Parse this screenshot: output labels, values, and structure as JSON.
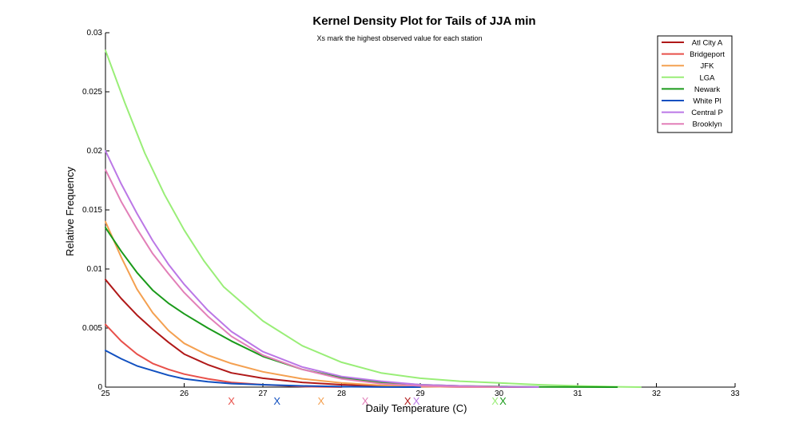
{
  "chart_data": {
    "type": "line",
    "title": "Kernel Density Plot for Tails of JJA min",
    "subtitle": "Xs mark the highest observed value for each station",
    "xlabel": "Daily Temperature (C)",
    "ylabel": "Relative Frequency",
    "xlim": [
      25,
      33
    ],
    "ylim": [
      0,
      0.03
    ],
    "xticks": [
      "25",
      "26",
      "27",
      "28",
      "29",
      "30",
      "31",
      "32",
      "33"
    ],
    "yticks": [
      "0",
      "0.005",
      "0.01",
      "0.015",
      "0.02",
      "0.025",
      "0.03"
    ],
    "grid": false,
    "legend_position": "top-right",
    "series": [
      {
        "name": "Atl City A",
        "color": "#b01818",
        "x": [
          25,
          25.2,
          25.4,
          25.6,
          25.8,
          26,
          26.3,
          26.6,
          27,
          27.5,
          28,
          28.5,
          29,
          29.5,
          30,
          30.5
        ],
        "y": [
          0.0091,
          0.0075,
          0.0061,
          0.0049,
          0.0038,
          0.0028,
          0.0019,
          0.0012,
          0.00075,
          0.0004,
          0.0002,
          0.0001,
          5e-05,
          2e-05,
          1e-05,
          0.0
        ]
      },
      {
        "name": "Bridgeport",
        "color": "#e8504a",
        "x": [
          25,
          25.2,
          25.4,
          25.6,
          25.8,
          26,
          26.3,
          26.6,
          27,
          27.5,
          28
        ],
        "y": [
          0.0053,
          0.0039,
          0.0028,
          0.002,
          0.0015,
          0.0011,
          0.0007,
          0.0004,
          0.0002,
          5e-05,
          0.0
        ]
      },
      {
        "name": "JFK",
        "color": "#f4a050",
        "x": [
          25,
          25.2,
          25.4,
          25.6,
          25.8,
          26,
          26.3,
          26.6,
          27,
          27.5,
          28,
          28.5,
          29,
          29.5,
          30
        ],
        "y": [
          0.014,
          0.011,
          0.0083,
          0.0063,
          0.0048,
          0.0037,
          0.0027,
          0.002,
          0.0013,
          0.0007,
          0.00035,
          0.00015,
          5e-05,
          2e-05,
          0.0
        ]
      },
      {
        "name": "LGA",
        "color": "#99ee77",
        "x": [
          25,
          25.25,
          25.5,
          25.75,
          26,
          26.25,
          26.5,
          27,
          27.5,
          28,
          28.5,
          29,
          29.5,
          30,
          30.5,
          31,
          31.5,
          31.8
        ],
        "y": [
          0.0285,
          0.024,
          0.0198,
          0.0163,
          0.0133,
          0.0107,
          0.0085,
          0.0056,
          0.0035,
          0.0021,
          0.0012,
          0.00075,
          0.0005,
          0.00035,
          0.0002,
          0.0001,
          3e-05,
          0.0
        ]
      },
      {
        "name": "Newark",
        "color": "#1a9a1a",
        "x": [
          25,
          25.2,
          25.4,
          25.6,
          25.8,
          26,
          26.3,
          26.6,
          27,
          27.5,
          28,
          28.5,
          29,
          29.5,
          30,
          30.5,
          31,
          31.5
        ],
        "y": [
          0.0135,
          0.0115,
          0.0097,
          0.0082,
          0.0071,
          0.0062,
          0.005,
          0.0039,
          0.0026,
          0.0015,
          0.0008,
          0.0004,
          0.0002,
          0.0001,
          5e-05,
          2e-05,
          1e-05,
          0.0
        ]
      },
      {
        "name": "White Pl",
        "color": "#1150c0",
        "x": [
          25,
          25.2,
          25.4,
          25.6,
          25.8,
          26,
          26.3,
          26.6,
          27,
          27.5,
          28,
          28.5,
          29
        ],
        "y": [
          0.0031,
          0.0024,
          0.0018,
          0.0014,
          0.001,
          0.0007,
          0.00045,
          0.0003,
          0.0002,
          0.0001,
          4e-05,
          1e-05,
          0.0
        ]
      },
      {
        "name": "Central P",
        "color": "#bb77e6",
        "x": [
          25,
          25.2,
          25.4,
          25.6,
          25.8,
          26,
          26.3,
          26.6,
          27,
          27.5,
          28,
          28.5,
          29,
          29.5,
          30,
          30.5
        ],
        "y": [
          0.02,
          0.0172,
          0.0147,
          0.0124,
          0.0104,
          0.0087,
          0.0065,
          0.0047,
          0.003,
          0.0017,
          0.0009,
          0.0005,
          0.0002,
          0.0001,
          3e-05,
          0.0
        ]
      },
      {
        "name": "Brooklyn",
        "color": "#e27fb8",
        "x": [
          25,
          25.2,
          25.4,
          25.6,
          25.8,
          26,
          26.3,
          26.6,
          27,
          27.5,
          28,
          28.5,
          29,
          29.5,
          30
        ],
        "y": [
          0.0184,
          0.0157,
          0.0134,
          0.0113,
          0.0096,
          0.008,
          0.006,
          0.0043,
          0.0027,
          0.0015,
          0.0007,
          0.0003,
          0.0001,
          3e-05,
          0.0
        ]
      }
    ],
    "markers": [
      {
        "x": 26.6,
        "color": "#e8504a"
      },
      {
        "x": 27.18,
        "color": "#1150c0"
      },
      {
        "x": 27.74,
        "color": "#f4a050"
      },
      {
        "x": 28.3,
        "color": "#e27fb8"
      },
      {
        "x": 28.84,
        "color": "#b01818"
      },
      {
        "x": 28.95,
        "color": "#bb77e6"
      },
      {
        "x": 29.95,
        "color": "#99ee77"
      },
      {
        "x": 30.05,
        "color": "#1a9a1a"
      }
    ],
    "marker_label": "X"
  }
}
